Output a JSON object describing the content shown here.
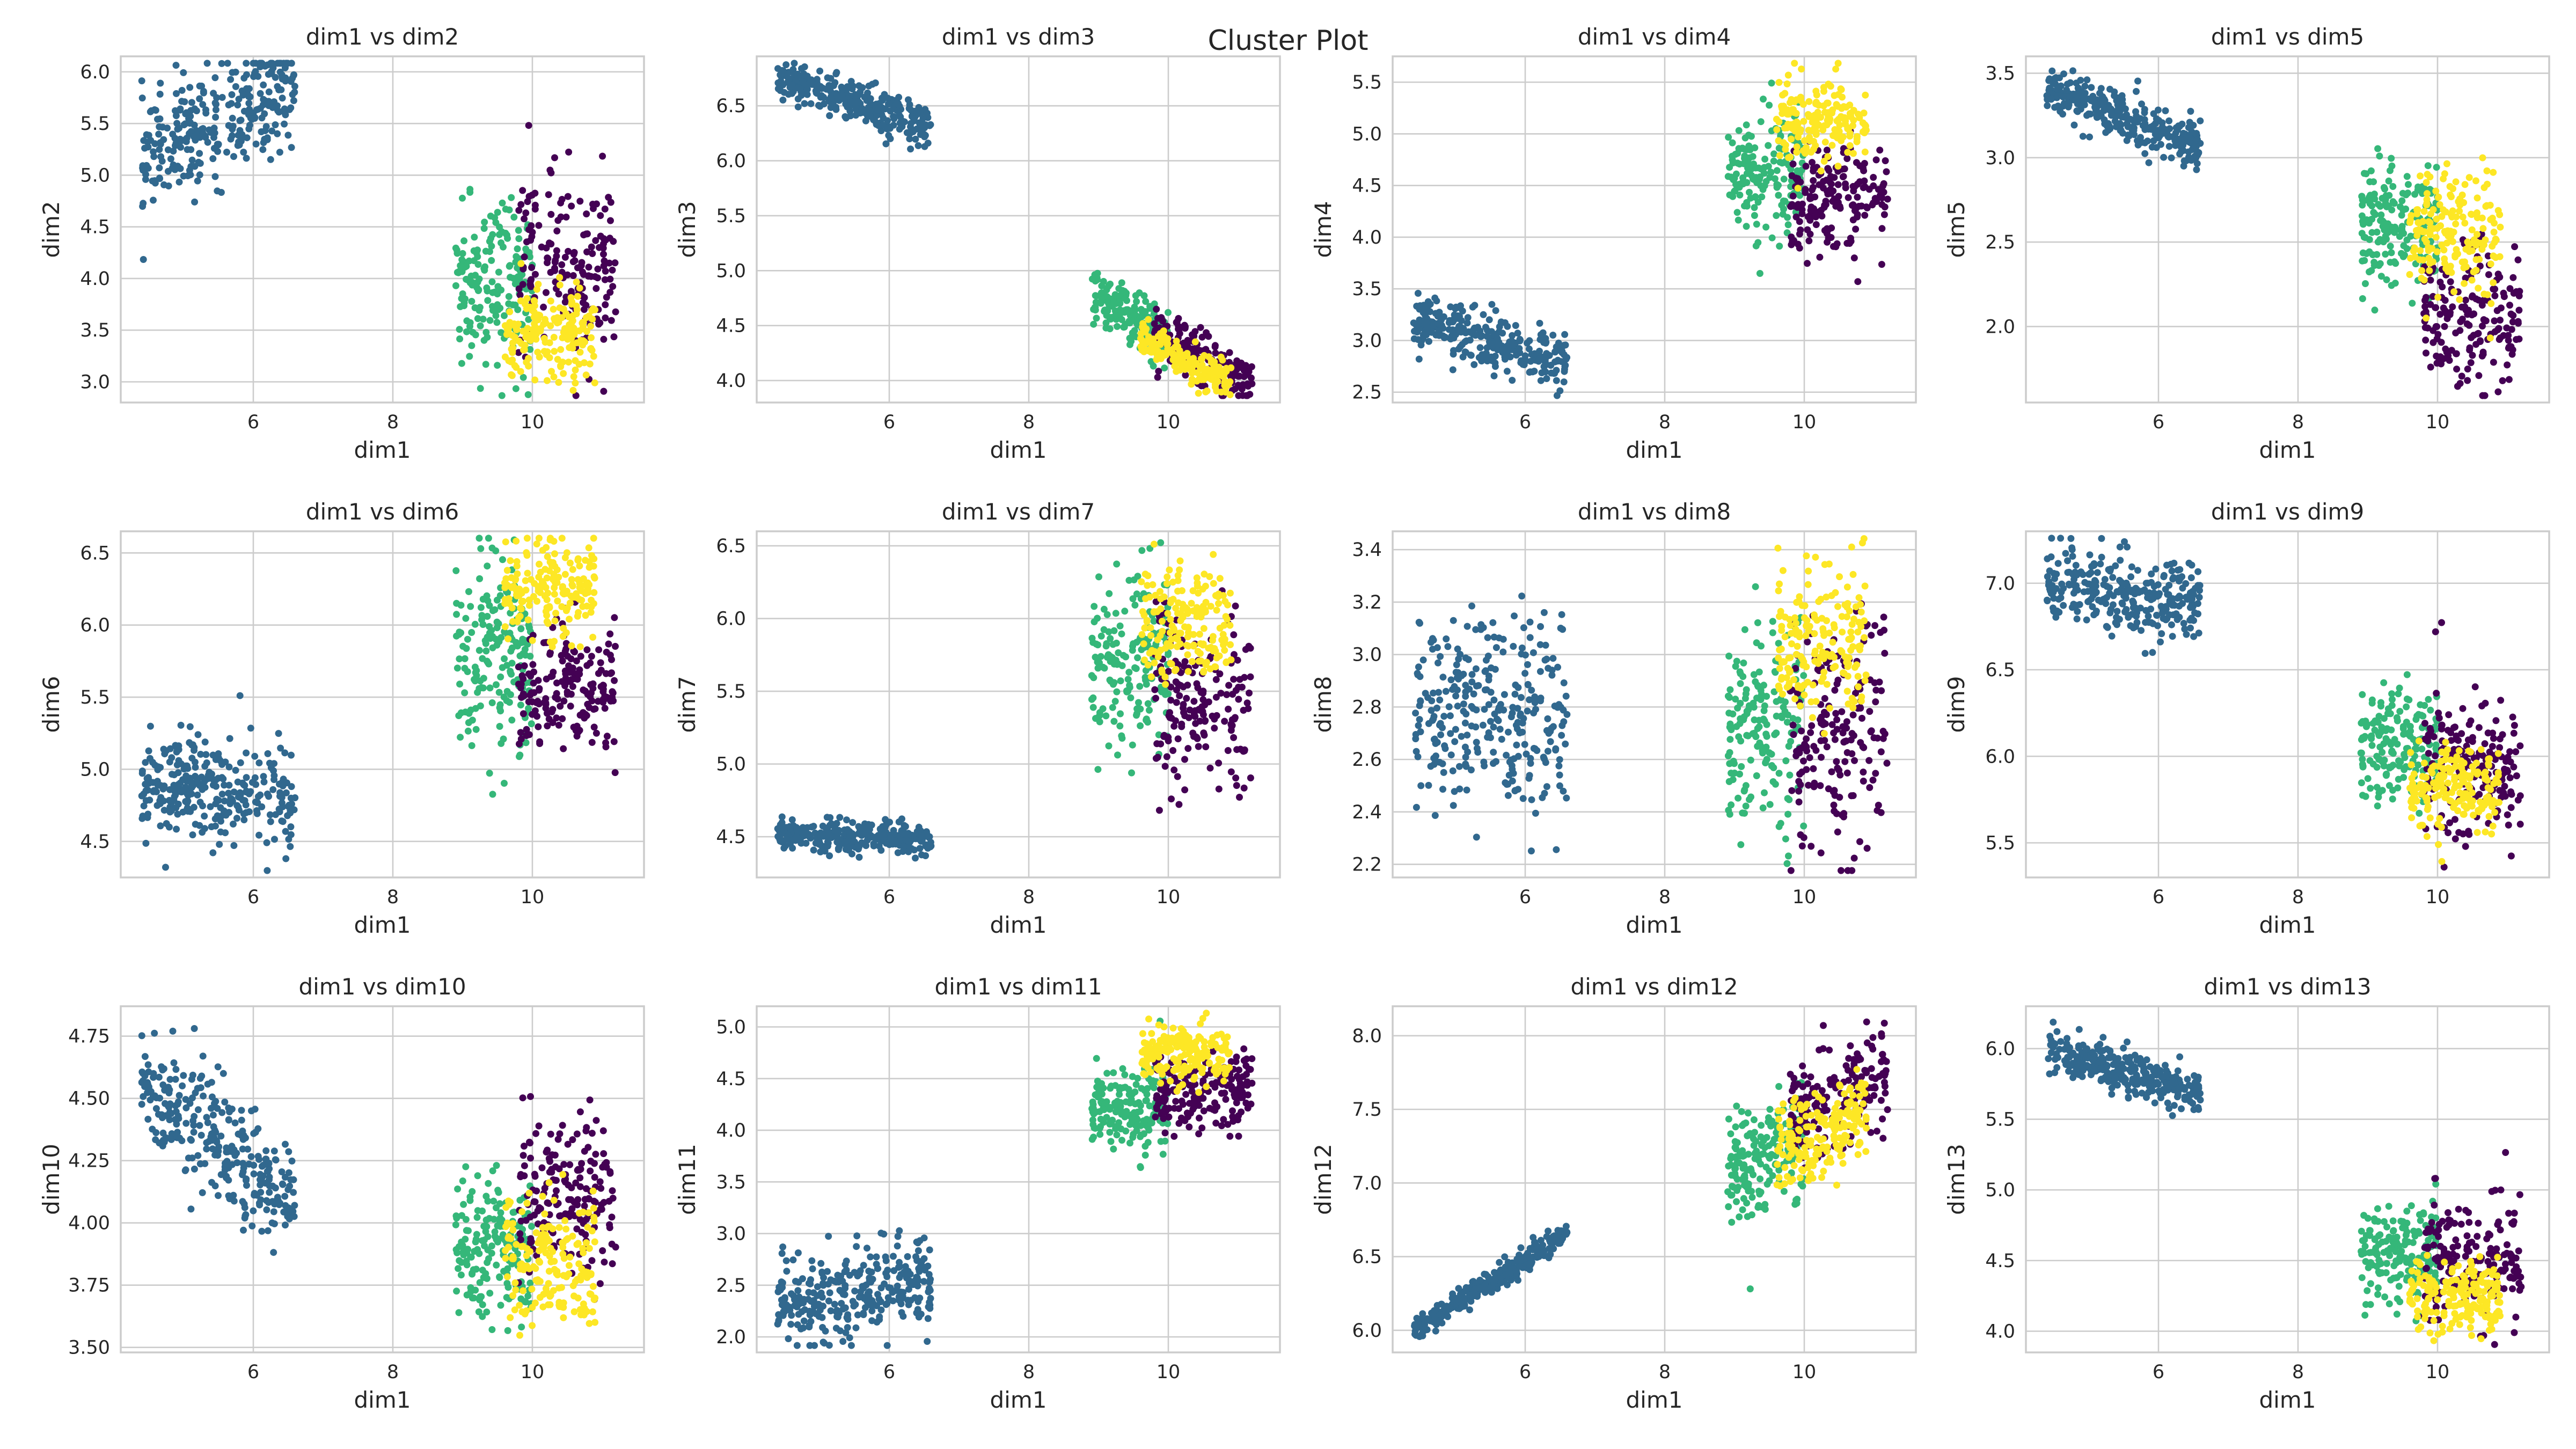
{
  "figure_title": "Cluster Plot",
  "colors": {
    "cluster_0": "#440154",
    "cluster_1": "#31688e",
    "cluster_2": "#35b779",
    "cluster_3": "#fde725"
  },
  "chart_data": [
    {
      "type": "scatter",
      "title": "dim1 vs dim2",
      "xlabel": "dim1",
      "ylabel": "dim2",
      "xlim": [
        4.1,
        11.6
      ],
      "ylim": [
        2.8,
        6.15
      ],
      "xticks": [
        6,
        8,
        10
      ],
      "yticks": [
        3.0,
        3.5,
        4.0,
        4.5,
        5.0,
        5.5,
        6.0
      ],
      "grid": true,
      "clusters": [
        {
          "id": 1,
          "color": "#31688e",
          "x_range": [
            4.4,
            6.6
          ],
          "center": [
            5.4,
            5.5
          ],
          "spread": 0.28,
          "slope": 0.35
        },
        {
          "id": 2,
          "color": "#35b779",
          "x_range": [
            8.9,
            10.0
          ],
          "center": [
            9.5,
            3.9
          ],
          "spread": 0.4,
          "slope": 0.0
        },
        {
          "id": 0,
          "color": "#440154",
          "x_range": [
            9.8,
            11.2
          ],
          "center": [
            10.5,
            4.1
          ],
          "spread": 0.45,
          "slope": 0.0
        },
        {
          "id": 3,
          "color": "#fde725",
          "x_range": [
            9.6,
            10.9
          ],
          "center": [
            10.2,
            3.45
          ],
          "spread": 0.22,
          "slope": 0.0
        }
      ]
    },
    {
      "type": "scatter",
      "title": "dim1 vs dim3",
      "xlabel": "dim1",
      "ylabel": "dim3",
      "xlim": [
        4.1,
        11.6
      ],
      "ylim": [
        3.8,
        6.95
      ],
      "xticks": [
        6,
        8,
        10
      ],
      "yticks": [
        4.0,
        4.5,
        5.0,
        5.5,
        6.0,
        6.5
      ],
      "grid": true,
      "clusters": [
        {
          "id": 1,
          "color": "#31688e",
          "x_range": [
            4.4,
            6.6
          ],
          "center": [
            5.4,
            6.55
          ],
          "spread": 0.1,
          "slope": -0.2
        },
        {
          "id": 2,
          "color": "#35b779",
          "x_range": [
            8.9,
            10.0
          ],
          "center": [
            9.4,
            4.6
          ],
          "spread": 0.12,
          "slope": -0.4
        },
        {
          "id": 0,
          "color": "#440154",
          "x_range": [
            9.8,
            11.2
          ],
          "center": [
            10.5,
            4.2
          ],
          "spread": 0.12,
          "slope": -0.35
        },
        {
          "id": 3,
          "color": "#fde725",
          "x_range": [
            9.6,
            10.9
          ],
          "center": [
            10.2,
            4.2
          ],
          "spread": 0.08,
          "slope": -0.35
        }
      ]
    },
    {
      "type": "scatter",
      "title": "dim1 vs dim4",
      "xlabel": "dim1",
      "ylabel": "dim4",
      "xlim": [
        4.1,
        11.6
      ],
      "ylim": [
        2.4,
        5.75
      ],
      "xticks": [
        6,
        8,
        10
      ],
      "yticks": [
        2.5,
        3.0,
        3.5,
        4.0,
        4.5,
        5.0,
        5.5
      ],
      "grid": true,
      "clusters": [
        {
          "id": 1,
          "color": "#31688e",
          "x_range": [
            4.4,
            6.6
          ],
          "center": [
            5.4,
            3.0
          ],
          "spread": 0.15,
          "slope": -0.2
        },
        {
          "id": 2,
          "color": "#35b779",
          "x_range": [
            8.9,
            10.0
          ],
          "center": [
            9.5,
            4.55
          ],
          "spread": 0.3,
          "slope": 0.0
        },
        {
          "id": 0,
          "color": "#440154",
          "x_range": [
            9.8,
            11.2
          ],
          "center": [
            10.5,
            4.4
          ],
          "spread": 0.25,
          "slope": 0.0
        },
        {
          "id": 3,
          "color": "#fde725",
          "x_range": [
            9.6,
            10.9
          ],
          "center": [
            10.3,
            5.15
          ],
          "spread": 0.2,
          "slope": 0.0
        }
      ]
    },
    {
      "type": "scatter",
      "title": "dim1 vs dim5",
      "xlabel": "dim1",
      "ylabel": "dim5",
      "xlim": [
        4.1,
        11.6
      ],
      "ylim": [
        1.55,
        3.6
      ],
      "xticks": [
        6,
        8,
        10
      ],
      "yticks": [
        2.0,
        2.5,
        3.0,
        3.5
      ],
      "grid": true,
      "clusters": [
        {
          "id": 1,
          "color": "#31688e",
          "x_range": [
            4.4,
            6.6
          ],
          "center": [
            5.4,
            3.25
          ],
          "spread": 0.07,
          "slope": -0.15
        },
        {
          "id": 2,
          "color": "#35b779",
          "x_range": [
            8.9,
            10.0
          ],
          "center": [
            9.5,
            2.6
          ],
          "spread": 0.2,
          "slope": 0.0
        },
        {
          "id": 0,
          "color": "#440154",
          "x_range": [
            9.8,
            11.2
          ],
          "center": [
            10.5,
            2.05
          ],
          "spread": 0.2,
          "slope": 0.0
        },
        {
          "id": 3,
          "color": "#fde725",
          "x_range": [
            9.6,
            10.9
          ],
          "center": [
            10.2,
            2.55
          ],
          "spread": 0.2,
          "slope": 0.0
        }
      ]
    },
    {
      "type": "scatter",
      "title": "dim1 vs dim6",
      "xlabel": "dim1",
      "ylabel": "dim6",
      "xlim": [
        4.1,
        11.6
      ],
      "ylim": [
        4.25,
        6.65
      ],
      "xticks": [
        6,
        8,
        10
      ],
      "yticks": [
        4.5,
        5.0,
        5.5,
        6.0,
        6.5
      ],
      "grid": true,
      "clusters": [
        {
          "id": 1,
          "color": "#31688e",
          "x_range": [
            4.4,
            6.6
          ],
          "center": [
            5.4,
            4.85
          ],
          "spread": 0.18,
          "slope": -0.05
        },
        {
          "id": 2,
          "color": "#35b779",
          "x_range": [
            8.9,
            10.0
          ],
          "center": [
            9.5,
            5.8
          ],
          "spread": 0.35,
          "slope": 0.0
        },
        {
          "id": 0,
          "color": "#440154",
          "x_range": [
            9.8,
            11.2
          ],
          "center": [
            10.5,
            5.55
          ],
          "spread": 0.25,
          "slope": 0.0
        },
        {
          "id": 3,
          "color": "#fde725",
          "x_range": [
            9.6,
            10.9
          ],
          "center": [
            10.3,
            6.25
          ],
          "spread": 0.17,
          "slope": 0.0
        }
      ]
    },
    {
      "type": "scatter",
      "title": "dim1 vs dim7",
      "xlabel": "dim1",
      "ylabel": "dim7",
      "xlim": [
        4.1,
        11.6
      ],
      "ylim": [
        4.22,
        6.6
      ],
      "xticks": [
        6,
        8,
        10
      ],
      "yticks": [
        4.5,
        5.0,
        5.5,
        6.0,
        6.5
      ],
      "grid": true,
      "clusters": [
        {
          "id": 1,
          "color": "#31688e",
          "x_range": [
            4.4,
            6.6
          ],
          "center": [
            5.4,
            4.5
          ],
          "spread": 0.05,
          "slope": -0.02
        },
        {
          "id": 2,
          "color": "#35b779",
          "x_range": [
            8.9,
            10.0
          ],
          "center": [
            9.5,
            5.7
          ],
          "spread": 0.3,
          "slope": 0.0
        },
        {
          "id": 0,
          "color": "#440154",
          "x_range": [
            9.8,
            11.2
          ],
          "center": [
            10.5,
            5.45
          ],
          "spread": 0.3,
          "slope": 0.0
        },
        {
          "id": 3,
          "color": "#fde725",
          "x_range": [
            9.6,
            10.9
          ],
          "center": [
            10.2,
            5.95
          ],
          "spread": 0.2,
          "slope": 0.0
        }
      ]
    },
    {
      "type": "scatter",
      "title": "dim1 vs dim8",
      "xlabel": "dim1",
      "ylabel": "dim8",
      "xlim": [
        4.1,
        11.6
      ],
      "ylim": [
        2.15,
        3.47
      ],
      "xticks": [
        6,
        8,
        10
      ],
      "yticks": [
        2.2,
        2.4,
        2.6,
        2.8,
        3.0,
        3.2,
        3.4
      ],
      "grid": true,
      "clusters": [
        {
          "id": 1,
          "color": "#31688e",
          "x_range": [
            4.4,
            6.6
          ],
          "center": [
            5.5,
            2.78
          ],
          "spread": 0.18,
          "slope": 0.0
        },
        {
          "id": 2,
          "color": "#35b779",
          "x_range": [
            8.9,
            10.0
          ],
          "center": [
            9.5,
            2.7
          ],
          "spread": 0.2,
          "slope": 0.0
        },
        {
          "id": 0,
          "color": "#440154",
          "x_range": [
            9.8,
            11.2
          ],
          "center": [
            10.5,
            2.7
          ],
          "spread": 0.22,
          "slope": 0.0
        },
        {
          "id": 3,
          "color": "#fde725",
          "x_range": [
            9.6,
            10.9
          ],
          "center": [
            10.3,
            3.05
          ],
          "spread": 0.15,
          "slope": 0.0
        }
      ]
    },
    {
      "type": "scatter",
      "title": "dim1 vs dim9",
      "xlabel": "dim1",
      "ylabel": "dim9",
      "xlim": [
        4.1,
        11.6
      ],
      "ylim": [
        5.3,
        7.3
      ],
      "xticks": [
        6,
        8,
        10
      ],
      "yticks": [
        5.5,
        6.0,
        6.5,
        7.0
      ],
      "grid": true,
      "clusters": [
        {
          "id": 1,
          "color": "#31688e",
          "x_range": [
            4.4,
            6.6
          ],
          "center": [
            5.4,
            6.95
          ],
          "spread": 0.12,
          "slope": -0.05
        },
        {
          "id": 2,
          "color": "#35b779",
          "x_range": [
            8.9,
            10.0
          ],
          "center": [
            9.5,
            6.05
          ],
          "spread": 0.15,
          "slope": 0.0
        },
        {
          "id": 0,
          "color": "#440154",
          "x_range": [
            9.8,
            11.2
          ],
          "center": [
            10.4,
            5.95
          ],
          "spread": 0.22,
          "slope": -0.1
        },
        {
          "id": 3,
          "color": "#fde725",
          "x_range": [
            9.6,
            10.9
          ],
          "center": [
            10.2,
            5.8
          ],
          "spread": 0.12,
          "slope": 0.0
        }
      ]
    },
    {
      "type": "scatter",
      "title": "dim1 vs dim10",
      "xlabel": "dim1",
      "ylabel": "dim10",
      "xlim": [
        4.1,
        11.6
      ],
      "ylim": [
        3.48,
        4.87
      ],
      "xticks": [
        6,
        8,
        10
      ],
      "yticks": [
        3.5,
        3.75,
        4.0,
        4.25,
        4.5,
        4.75
      ],
      "grid": true,
      "clusters": [
        {
          "id": 1,
          "color": "#31688e",
          "x_range": [
            4.4,
            6.6
          ],
          "center": [
            5.4,
            4.35
          ],
          "spread": 0.12,
          "slope": -0.2
        },
        {
          "id": 2,
          "color": "#35b779",
          "x_range": [
            8.9,
            10.0
          ],
          "center": [
            9.5,
            3.9
          ],
          "spread": 0.14,
          "slope": 0.0
        },
        {
          "id": 0,
          "color": "#440154",
          "x_range": [
            9.8,
            11.2
          ],
          "center": [
            10.5,
            4.1
          ],
          "spread": 0.15,
          "slope": 0.0
        },
        {
          "id": 3,
          "color": "#fde725",
          "x_range": [
            9.6,
            10.9
          ],
          "center": [
            10.2,
            3.85
          ],
          "spread": 0.12,
          "slope": 0.0
        }
      ]
    },
    {
      "type": "scatter",
      "title": "dim1 vs dim11",
      "xlabel": "dim1",
      "ylabel": "dim11",
      "xlim": [
        4.1,
        11.6
      ],
      "ylim": [
        1.85,
        5.2
      ],
      "xticks": [
        6,
        8,
        10
      ],
      "yticks": [
        2.0,
        2.5,
        3.0,
        3.5,
        4.0,
        4.5,
        5.0
      ],
      "grid": true,
      "clusters": [
        {
          "id": 1,
          "color": "#31688e",
          "x_range": [
            4.4,
            6.6
          ],
          "center": [
            5.4,
            2.4
          ],
          "spread": 0.22,
          "slope": 0.15
        },
        {
          "id": 2,
          "color": "#35b779",
          "x_range": [
            8.9,
            10.0
          ],
          "center": [
            9.5,
            4.2
          ],
          "spread": 0.2,
          "slope": 0.0
        },
        {
          "id": 0,
          "color": "#440154",
          "x_range": [
            9.8,
            11.2
          ],
          "center": [
            10.5,
            4.35
          ],
          "spread": 0.18,
          "slope": 0.0
        },
        {
          "id": 3,
          "color": "#fde725",
          "x_range": [
            9.6,
            10.9
          ],
          "center": [
            10.3,
            4.75
          ],
          "spread": 0.15,
          "slope": 0.0
        }
      ]
    },
    {
      "type": "scatter",
      "title": "dim1 vs dim12",
      "xlabel": "dim1",
      "ylabel": "dim12",
      "xlim": [
        4.1,
        11.6
      ],
      "ylim": [
        5.85,
        8.2
      ],
      "xticks": [
        6,
        8,
        10
      ],
      "yticks": [
        6.0,
        6.5,
        7.0,
        7.5,
        8.0
      ],
      "grid": true,
      "clusters": [
        {
          "id": 1,
          "color": "#31688e",
          "x_range": [
            4.4,
            6.6
          ],
          "center": [
            5.4,
            6.3
          ],
          "spread": 0.04,
          "slope": 0.3
        },
        {
          "id": 2,
          "color": "#35b779",
          "x_range": [
            8.9,
            10.0
          ],
          "center": [
            9.5,
            7.2
          ],
          "spread": 0.18,
          "slope": 0.2
        },
        {
          "id": 0,
          "color": "#440154",
          "x_range": [
            9.8,
            11.2
          ],
          "center": [
            10.5,
            7.6
          ],
          "spread": 0.18,
          "slope": 0.2
        },
        {
          "id": 3,
          "color": "#fde725",
          "x_range": [
            9.6,
            10.9
          ],
          "center": [
            10.3,
            7.35
          ],
          "spread": 0.15,
          "slope": 0.2
        }
      ]
    },
    {
      "type": "scatter",
      "title": "dim1 vs dim13",
      "xlabel": "dim1",
      "ylabel": "dim13",
      "xlim": [
        4.1,
        11.6
      ],
      "ylim": [
        3.85,
        6.3
      ],
      "xticks": [
        6,
        8,
        10
      ],
      "yticks": [
        4.0,
        4.5,
        5.0,
        5.5,
        6.0
      ],
      "grid": true,
      "clusters": [
        {
          "id": 1,
          "color": "#31688e",
          "x_range": [
            4.4,
            6.6
          ],
          "center": [
            5.4,
            5.85
          ],
          "spread": 0.08,
          "slope": -0.15
        },
        {
          "id": 2,
          "color": "#35b779",
          "x_range": [
            8.9,
            10.0
          ],
          "center": [
            9.5,
            4.55
          ],
          "spread": 0.18,
          "slope": 0.0
        },
        {
          "id": 0,
          "color": "#440154",
          "x_range": [
            9.8,
            11.2
          ],
          "center": [
            10.5,
            4.5
          ],
          "spread": 0.2,
          "slope": 0.0
        },
        {
          "id": 3,
          "color": "#fde725",
          "x_range": [
            9.6,
            10.9
          ],
          "center": [
            10.2,
            4.25
          ],
          "spread": 0.14,
          "slope": 0.0
        }
      ]
    }
  ]
}
